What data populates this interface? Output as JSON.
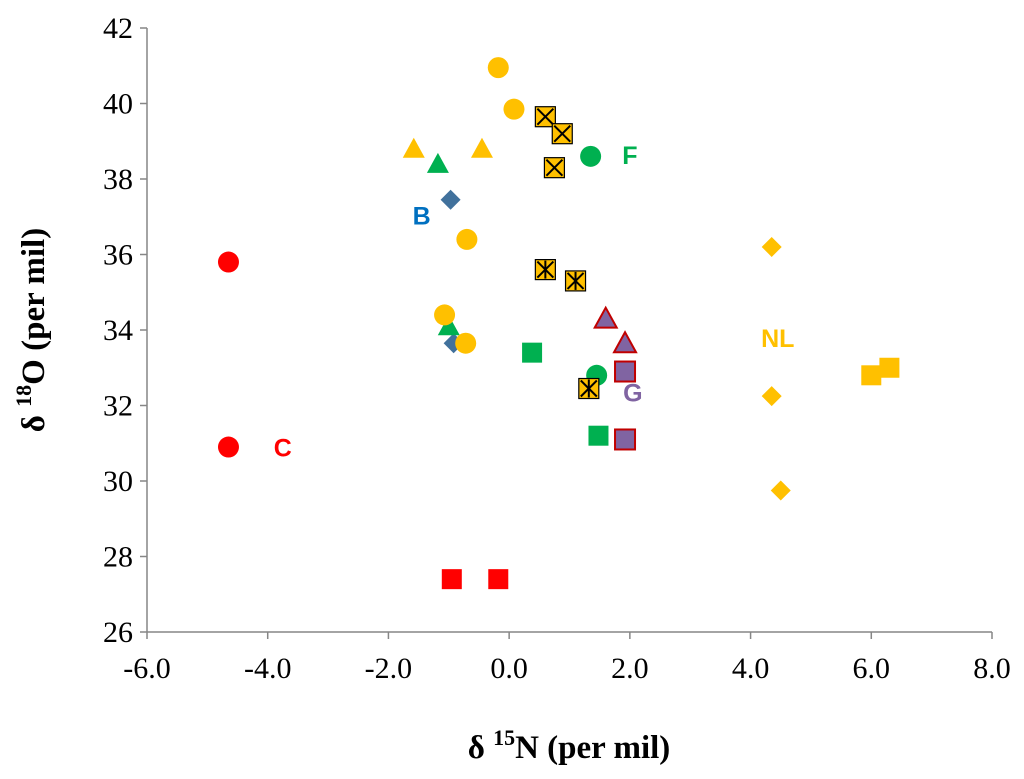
{
  "chart_data": {
    "type": "scatter",
    "title": "",
    "xlabel": {
      "prefix": "δ ",
      "sup": "15",
      "main": "N (per mil)"
    },
    "ylabel": {
      "prefix": "δ ",
      "sup": "18",
      "main": "O (per mil)"
    },
    "xlim": [
      -6.0,
      8.0
    ],
    "ylim": [
      26,
      42
    ],
    "xticks": [
      -6,
      -4,
      -2,
      0,
      2,
      4,
      6,
      8
    ],
    "xtick_labels": [
      "-6.0",
      "-4.0",
      "-2.0",
      "0.0",
      "2.0",
      "4.0",
      "6.0",
      "8.0"
    ],
    "yticks": [
      26,
      28,
      30,
      32,
      34,
      36,
      38,
      40,
      42
    ],
    "ytick_labels": [
      "26",
      "28",
      "30",
      "32",
      "34",
      "36",
      "38",
      "40",
      "42"
    ],
    "grid": false,
    "legend": "none",
    "colors": {
      "red": "#ff0000",
      "green": "#00b050",
      "blue": "#41719c",
      "label_blue": "#0070c0",
      "yellow": "#ffc000",
      "purple": "#8064a2",
      "dark_red": "#c00000",
      "black": "#000000"
    },
    "annotations": [
      {
        "text": "C",
        "x": -3.75,
        "y": 30.65,
        "color": "#ff0000"
      },
      {
        "text": "B",
        "x": -1.45,
        "y": 36.8,
        "color": "#0070c0"
      },
      {
        "text": "F",
        "x": 2.0,
        "y": 38.4,
        "color": "#00b050"
      },
      {
        "text": "NL",
        "x": 4.45,
        "y": 33.55,
        "color": "#ffc000"
      },
      {
        "text": "G",
        "x": 2.05,
        "y": 32.1,
        "color": "#8064a2"
      }
    ],
    "series": [
      {
        "name": "C",
        "points": [
          {
            "x": -4.65,
            "y": 35.8,
            "marker": "circle",
            "fill": "#ff0000"
          },
          {
            "x": -4.65,
            "y": 30.9,
            "marker": "circle",
            "fill": "#ff0000"
          },
          {
            "x": -0.95,
            "y": 27.4,
            "marker": "square",
            "fill": "#ff0000"
          },
          {
            "x": -0.18,
            "y": 27.4,
            "marker": "square",
            "fill": "#ff0000"
          }
        ]
      },
      {
        "name": "B",
        "points": [
          {
            "x": -0.97,
            "y": 37.45,
            "marker": "diamond",
            "fill": "#41719c"
          },
          {
            "x": -0.92,
            "y": 33.65,
            "marker": "diamond",
            "fill": "#41719c"
          }
        ]
      },
      {
        "name": "F",
        "points": [
          {
            "x": -1.18,
            "y": 38.4,
            "marker": "triangle",
            "fill": "#00b050"
          },
          {
            "x": -1.0,
            "y": 34.1,
            "marker": "triangle",
            "fill": "#00b050"
          },
          {
            "x": 1.35,
            "y": 38.6,
            "marker": "circle",
            "fill": "#00b050"
          },
          {
            "x": 1.45,
            "y": 32.8,
            "marker": "circle",
            "fill": "#00b050"
          },
          {
            "x": 0.38,
            "y": 33.4,
            "marker": "square",
            "fill": "#00b050"
          },
          {
            "x": 1.48,
            "y": 31.2,
            "marker": "square",
            "fill": "#00b050"
          }
        ]
      },
      {
        "name": "NL",
        "points": [
          {
            "x": -1.58,
            "y": 38.8,
            "marker": "triangle",
            "fill": "#ffc000"
          },
          {
            "x": -0.45,
            "y": 38.8,
            "marker": "triangle",
            "fill": "#ffc000"
          },
          {
            "x": -0.18,
            "y": 40.95,
            "marker": "circle",
            "fill": "#ffc000"
          },
          {
            "x": 0.08,
            "y": 39.85,
            "marker": "circle",
            "fill": "#ffc000"
          },
          {
            "x": -0.7,
            "y": 36.4,
            "marker": "circle",
            "fill": "#ffc000"
          },
          {
            "x": -1.07,
            "y": 34.4,
            "marker": "circle",
            "fill": "#ffc000"
          },
          {
            "x": -0.72,
            "y": 33.65,
            "marker": "circle",
            "fill": "#ffc000"
          },
          {
            "x": 0.6,
            "y": 39.65,
            "marker": "square-x",
            "fill": "#ffc000"
          },
          {
            "x": 0.88,
            "y": 39.2,
            "marker": "square-x",
            "fill": "#ffc000"
          },
          {
            "x": 0.75,
            "y": 38.3,
            "marker": "square-x",
            "fill": "#ffc000"
          },
          {
            "x": 0.6,
            "y": 35.6,
            "marker": "square-star",
            "fill": "#ffc000"
          },
          {
            "x": 1.1,
            "y": 35.3,
            "marker": "square-star",
            "fill": "#ffc000"
          },
          {
            "x": 1.32,
            "y": 32.45,
            "marker": "square-star",
            "fill": "#ffc000"
          },
          {
            "x": 4.35,
            "y": 36.2,
            "marker": "diamond",
            "fill": "#ffc000"
          },
          {
            "x": 4.35,
            "y": 32.25,
            "marker": "diamond",
            "fill": "#ffc000"
          },
          {
            "x": 4.5,
            "y": 29.75,
            "marker": "diamond",
            "fill": "#ffc000"
          },
          {
            "x": 6.0,
            "y": 32.8,
            "marker": "square",
            "fill": "#ffc000"
          },
          {
            "x": 6.3,
            "y": 33.0,
            "marker": "square",
            "fill": "#ffc000"
          }
        ]
      },
      {
        "name": "G",
        "points": [
          {
            "x": 1.6,
            "y": 34.3,
            "marker": "triangle",
            "fill": "#8064a2",
            "stroke": "#c00000"
          },
          {
            "x": 1.92,
            "y": 33.65,
            "marker": "triangle",
            "fill": "#8064a2",
            "stroke": "#c00000"
          },
          {
            "x": 1.92,
            "y": 32.9,
            "marker": "square",
            "fill": "#8064a2",
            "stroke": "#c00000"
          },
          {
            "x": 1.92,
            "y": 31.1,
            "marker": "square",
            "fill": "#8064a2",
            "stroke": "#c00000"
          }
        ]
      }
    ]
  }
}
